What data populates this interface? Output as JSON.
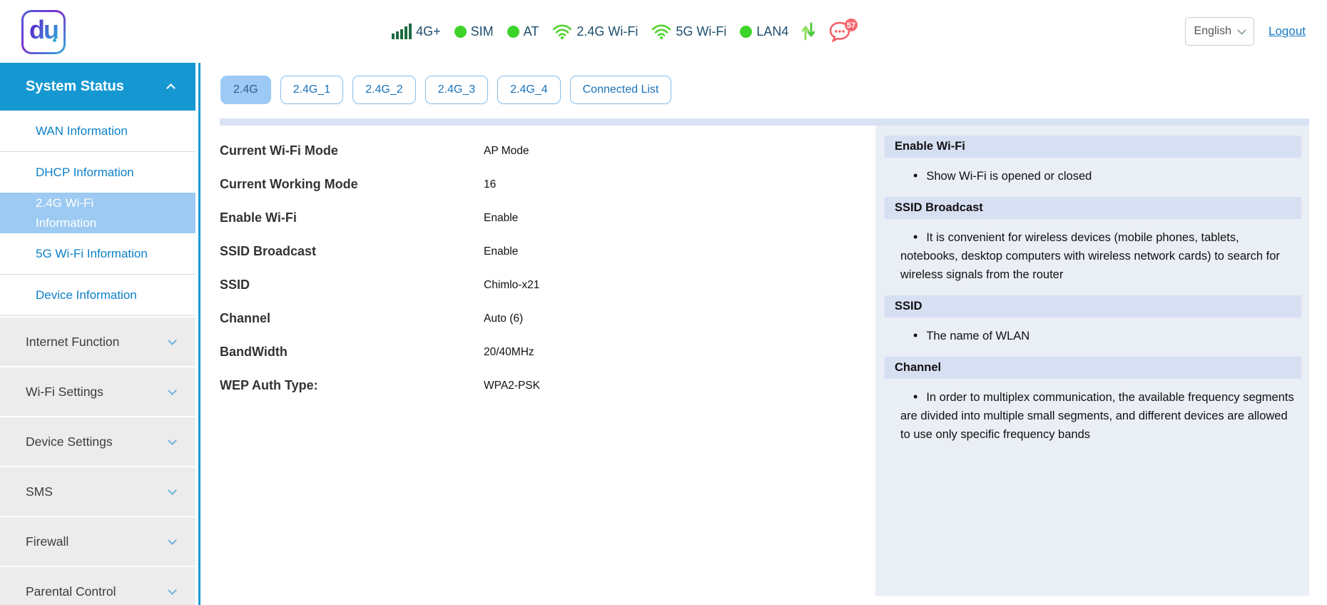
{
  "header": {
    "logo_text": "du",
    "status_items": [
      {
        "icon": "signal-bars-icon",
        "label": "4G+"
      },
      {
        "icon": "green-dot-icon",
        "label": "SIM"
      },
      {
        "icon": "green-dot-icon",
        "label": "AT"
      },
      {
        "icon": "wifi-icon",
        "label": "2.4G Wi-Fi"
      },
      {
        "icon": "wifi-icon",
        "label": "5G Wi-Fi"
      },
      {
        "icon": "green-dot-icon",
        "label": "LAN4"
      },
      {
        "icon": "traffic-arrows-icon",
        "label": ""
      },
      {
        "icon": "message-bubble-icon",
        "label": "",
        "badge": "57"
      }
    ],
    "language_selected": "English",
    "logout_label": "Logout"
  },
  "sidebar": {
    "active_group_label": "System Status",
    "active_group_items": [
      {
        "label": "WAN Information",
        "active": false,
        "divider_after": true
      },
      {
        "label": "DHCP Information",
        "active": false,
        "divider_after": false
      },
      {
        "label": "2.4G Wi-Fi Information",
        "active": true,
        "divider_after": false
      },
      {
        "label": "5G Wi-Fi Information",
        "active": false,
        "divider_after": true
      },
      {
        "label": "Device Information",
        "active": false,
        "divider_after": true
      }
    ],
    "collapsed_groups": [
      "Internet Function",
      "Wi-Fi Settings",
      "Device Settings",
      "SMS",
      "Firewall",
      "Parental Control"
    ]
  },
  "tabs": [
    {
      "label": "2.4G",
      "active": true
    },
    {
      "label": "2.4G_1",
      "active": false
    },
    {
      "label": "2.4G_2",
      "active": false
    },
    {
      "label": "2.4G_3",
      "active": false
    },
    {
      "label": "2.4G_4",
      "active": false
    },
    {
      "label": "Connected List",
      "active": false
    }
  ],
  "wifi_info": {
    "rows": [
      {
        "label": "Current Wi-Fi Mode",
        "value": "AP Mode"
      },
      {
        "label": "Current Working Mode",
        "value": "16"
      },
      {
        "label": "Enable Wi-Fi",
        "value": "Enable"
      },
      {
        "label": "SSID Broadcast",
        "value": "Enable"
      },
      {
        "label": "SSID",
        "value": "Chimlo-x21"
      },
      {
        "label": "Channel",
        "value": "Auto (6)"
      },
      {
        "label": "BandWidth",
        "value": "20/40MHz"
      },
      {
        "label": "WEP Auth Type:",
        "value": "WPA2-PSK"
      }
    ]
  },
  "help_panel": {
    "sections": [
      {
        "title": "Enable Wi-Fi",
        "bullets": [
          "Show Wi-Fi is opened or closed"
        ]
      },
      {
        "title": "SSID Broadcast",
        "bullets": [
          "It is convenient for wireless devices (mobile phones, tablets, notebooks, desktop computers with wireless network cards) to search for wireless signals from the router"
        ]
      },
      {
        "title": "SSID",
        "bullets": [
          "The name of WLAN"
        ]
      },
      {
        "title": "Channel",
        "bullets": [
          "In order to multiplex communication, the available frequency segments are divided into multiple small segments, and different devices are allowed to use only specific frequency bands"
        ]
      }
    ]
  },
  "colors": {
    "sidebar_header_bg": "#1598d2",
    "active_item_bg": "#9ccaf2",
    "link_blue": "#0d80c7",
    "tab_active_bg": "#9ccaf4",
    "status_green": "#3ed32b",
    "wifi_green": "#4fd32a",
    "signal_bar_green": "#1e6b41",
    "message_red": "#f2595f",
    "help_bg": "#eaeef5",
    "help_header_bg": "#d7e0f3",
    "strip": "#d8e2f3"
  }
}
